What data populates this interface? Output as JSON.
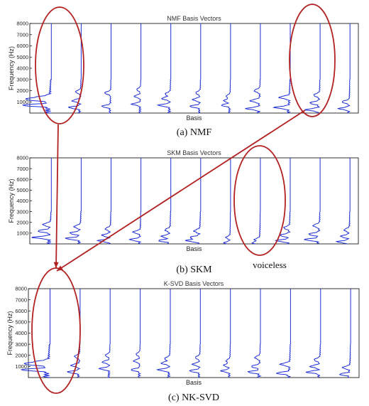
{
  "chart_data": [
    {
      "type": "line",
      "title": "NMF Basis Vectors",
      "xlabel": "Basis",
      "ylabel": "Frequency (Hz)",
      "ylim": [
        0,
        8000
      ],
      "yticks": [
        1000,
        2000,
        3000,
        4000,
        5000,
        6000,
        7000,
        8000
      ],
      "grid": false,
      "caption": "(a) NMF",
      "series_count": 11,
      "formant_peaks_hz": [
        [
          700,
          1200,
          1400
        ],
        [
          500,
          1100,
          1900
        ],
        [
          600,
          1800
        ],
        [
          800,
          1500,
          2100
        ],
        [
          700,
          1300,
          1700
        ],
        [
          600,
          1200,
          1800
        ],
        [
          700,
          1100,
          1500
        ],
        [
          400,
          1100,
          2000
        ],
        [
          500,
          1400
        ],
        [
          300,
          900,
          1600
        ],
        [
          400,
          1000
        ]
      ],
      "peak_strength": [
        0.95,
        0.4,
        0.3,
        0.3,
        0.4,
        0.35,
        0.3,
        0.45,
        0.5,
        0.45,
        0.35
      ]
    },
    {
      "type": "line",
      "title": "SKM Basis Vectors",
      "xlabel": "Basis",
      "ylabel": "Frequency (Hz)",
      "ylim": [
        0,
        8000
      ],
      "yticks": [
        1000,
        2000,
        3000,
        4000,
        5000,
        6000,
        7000,
        8000
      ],
      "grid": false,
      "caption": "(b) SKM",
      "annotation": "voiceless",
      "series_count": 11,
      "formant_peaks_hz": [
        [
          600,
          1200,
          1800
        ],
        [
          500,
          1000,
          1600
        ],
        [
          300,
          800,
          1400
        ],
        [
          400,
          1100
        ],
        [
          300,
          700,
          1300
        ],
        [
          300,
          600,
          1200
        ],
        [
          100,
          600
        ],
        [
          100,
          400
        ],
        [
          300,
          800,
          1500
        ],
        [
          400,
          900,
          1700
        ],
        [
          200,
          700,
          1300
        ]
      ],
      "peak_strength": [
        0.6,
        0.5,
        0.4,
        0.35,
        0.4,
        0.45,
        0.2,
        0.25,
        0.45,
        0.5,
        0.4
      ]
    },
    {
      "type": "line",
      "title": "K-SVD Basis Vectors",
      "xlabel": "Basis",
      "ylabel": "Frequency (Hz)",
      "ylim": [
        0,
        8000
      ],
      "yticks": [
        1000,
        2000,
        3000,
        4000,
        5000,
        6000,
        7000,
        8000
      ],
      "grid": false,
      "caption": "(c) NK-SVD",
      "series_count": 11,
      "formant_peaks_hz": [
        [
          700,
          1200,
          1400
        ],
        [
          500,
          1100,
          1900
        ],
        [
          800,
          1400,
          2000
        ],
        [
          700,
          1500,
          2100
        ],
        [
          700,
          1300,
          1700
        ],
        [
          600,
          1200,
          1800
        ],
        [
          600,
          1100,
          1500
        ],
        [
          500,
          1000,
          1800
        ],
        [
          400,
          1200
        ],
        [
          500,
          1000,
          1600
        ],
        [
          300,
          900
        ]
      ],
      "peak_strength": [
        0.95,
        0.4,
        0.35,
        0.3,
        0.4,
        0.35,
        0.3,
        0.4,
        0.45,
        0.45,
        0.35
      ]
    }
  ],
  "colors": {
    "line": "#1f2fd6",
    "highlight": "#b22222",
    "axis": "#000000"
  }
}
